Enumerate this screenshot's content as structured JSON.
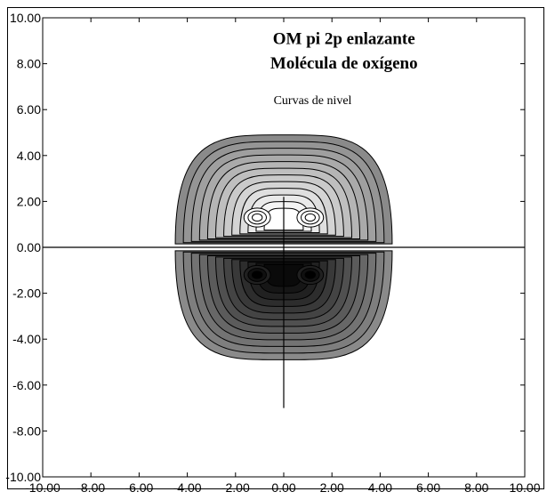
{
  "chart_data": {
    "type": "contour",
    "title_lines": [
      "OM pi 2p enlazante",
      "Molécula de oxígeno"
    ],
    "subtitle": "Curvas de nivel",
    "xlim": [
      -10,
      10
    ],
    "ylim": [
      -10,
      10
    ],
    "x_ticks": [
      "-10.00",
      "-8.00",
      "-6.00",
      "-4.00",
      "-2.00",
      "0.00",
      "2.00",
      "4.00",
      "6.00",
      "8.00",
      "10.00"
    ],
    "y_ticks": [
      "10.00",
      "8.00",
      "6.00",
      "4.00",
      "2.00",
      "0.00",
      "-2.00",
      "-4.00",
      "-6.00",
      "-8.00",
      "-10.00"
    ],
    "lobes": [
      {
        "name": "upper",
        "center_x": 0,
        "center_y": 1,
        "outer_half_width": 4.5,
        "outer_top": 4.9,
        "peaks": [
          [
            -1.1,
            1.3
          ],
          [
            1.1,
            1.3
          ]
        ],
        "shade_outer": "#8a8a8a",
        "shade_inner": "#ffffff"
      },
      {
        "name": "lower",
        "center_x": 0,
        "center_y": -1,
        "outer_half_width": 4.5,
        "outer_bottom": -4.9,
        "peaks": [
          [
            -1.1,
            -1.2
          ],
          [
            1.1,
            -1.2
          ]
        ],
        "shade_outer": "#8a8a8a",
        "shade_inner": "#0a0a0a"
      }
    ],
    "contour_levels": 12,
    "axis_lines": {
      "horizontal_y": 0,
      "vertical_x": 0,
      "vertical_from": -7,
      "vertical_to": 2.2
    },
    "grid": false,
    "legend": "none"
  }
}
